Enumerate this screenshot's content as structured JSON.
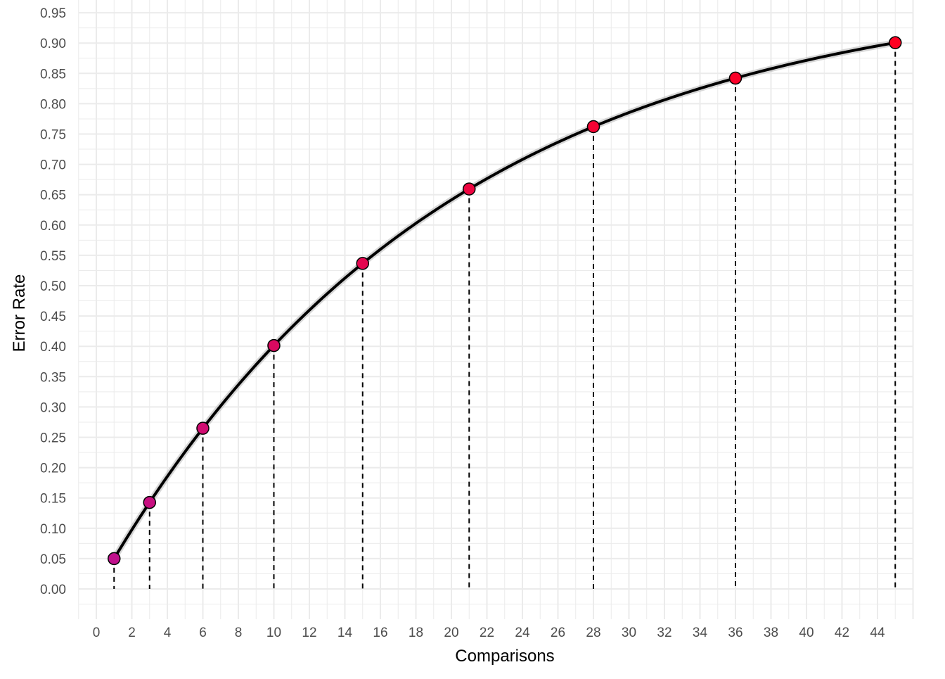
{
  "chart_data": {
    "type": "line",
    "xlabel": "Comparisons",
    "ylabel": "Error Rate",
    "xlim": [
      -1,
      46
    ],
    "ylim": [
      -0.04,
      0.95
    ],
    "x_ticks": [
      0,
      2,
      4,
      6,
      8,
      10,
      12,
      14,
      16,
      18,
      20,
      22,
      24,
      26,
      28,
      30,
      32,
      34,
      36,
      38,
      40,
      42,
      44
    ],
    "y_ticks": [
      "0.00",
      "0.05",
      "0.10",
      "0.15",
      "0.20",
      "0.25",
      "0.30",
      "0.35",
      "0.40",
      "0.45",
      "0.50",
      "0.55",
      "0.60",
      "0.65",
      "0.70",
      "0.75",
      "0.80",
      "0.85",
      "0.90",
      "0.95"
    ],
    "grid": true,
    "curve": "1 - 0.95^x",
    "points": {
      "x": [
        1,
        3,
        6,
        10,
        15,
        21,
        28,
        36,
        45
      ],
      "y": [
        0.05,
        0.1426,
        0.2649,
        0.4013,
        0.5367,
        0.6594,
        0.7622,
        0.8422,
        0.9006
      ]
    },
    "point_color_low": "#c0108c",
    "point_color_high": "#ff0022",
    "line_color": "#000000",
    "drop_lines": "dashed"
  }
}
